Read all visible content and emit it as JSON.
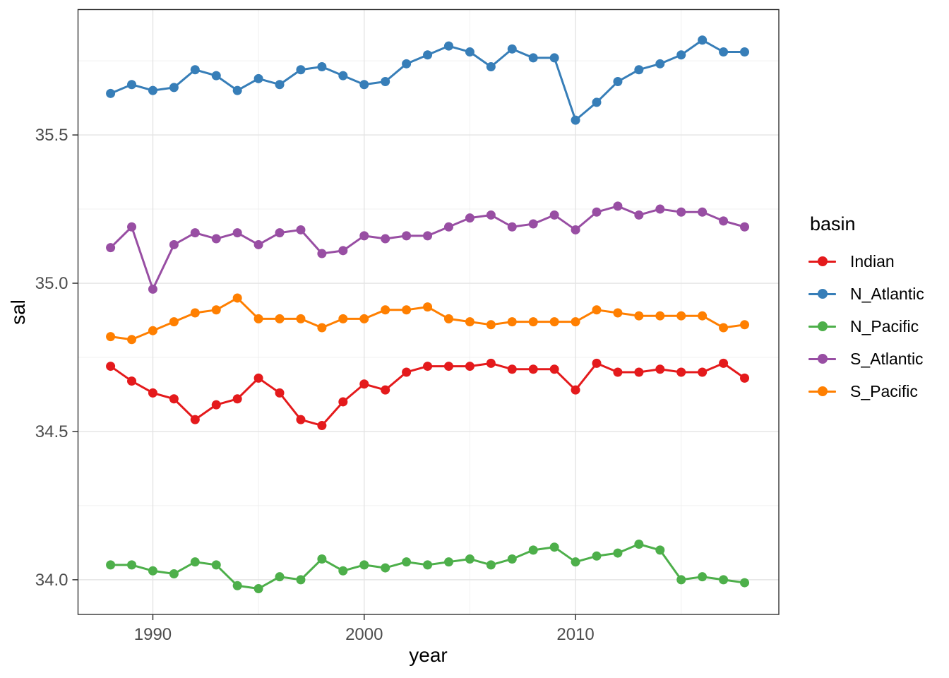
{
  "figure": {
    "x_axis_title": "year",
    "y_axis_title": "sal",
    "legend_title": "basin"
  },
  "style": {
    "background_color": "#FFFFFF",
    "panel_border_color": "#333333",
    "grid_major_color": "#E4E4E4",
    "grid_minor_color": "#F0F0F0",
    "tick_color": "#333333",
    "axis_text_color": "#4D4D4D",
    "axis_title_color": "#000000"
  },
  "chart_data": {
    "type": "line",
    "title": "",
    "xlabel": "year",
    "ylabel": "sal",
    "legend_title": "basin",
    "legend_position": "right",
    "grid": true,
    "marker": "point",
    "xlim": [
      1986.46,
      2019.62
    ],
    "ylim": [
      33.883,
      35.923
    ],
    "x_ticks": [
      {
        "value": 1990,
        "label": "1990"
      },
      {
        "value": 2000,
        "label": "2000"
      },
      {
        "value": 2010,
        "label": "2010"
      }
    ],
    "x_minor_ticks": [
      1995,
      2005,
      2015
    ],
    "y_ticks": [
      {
        "value": 34.0,
        "label": "34.0"
      },
      {
        "value": 34.5,
        "label": "34.5"
      },
      {
        "value": 35.0,
        "label": "35.0"
      },
      {
        "value": 35.5,
        "label": "35.5"
      }
    ],
    "y_minor_ticks": [
      34.25,
      34.75,
      35.25,
      35.75
    ],
    "x": [
      1988,
      1989,
      1990,
      1991,
      1992,
      1993,
      1994,
      1995,
      1996,
      1997,
      1998,
      1999,
      2000,
      2001,
      2002,
      2003,
      2004,
      2005,
      2006,
      2007,
      2008,
      2009,
      2010,
      2011,
      2012,
      2013,
      2014,
      2015,
      2016,
      2017,
      2018
    ],
    "series": [
      {
        "name": "Indian",
        "color": "#E41A1C",
        "values": [
          34.72,
          34.67,
          34.63,
          34.61,
          34.54,
          34.59,
          34.61,
          34.68,
          34.63,
          34.54,
          34.52,
          34.6,
          34.66,
          34.64,
          34.7,
          34.72,
          34.72,
          34.72,
          34.73,
          34.71,
          34.71,
          34.71,
          34.64,
          34.73,
          34.7,
          34.7,
          34.71,
          34.7,
          34.7,
          34.73,
          34.68
        ]
      },
      {
        "name": "N_Atlantic",
        "color": "#377EB8",
        "values": [
          35.64,
          35.67,
          35.65,
          35.66,
          35.72,
          35.7,
          35.65,
          35.69,
          35.67,
          35.72,
          35.73,
          35.7,
          35.67,
          35.68,
          35.74,
          35.77,
          35.8,
          35.78,
          35.73,
          35.79,
          35.76,
          35.76,
          35.55,
          35.61,
          35.68,
          35.72,
          35.74,
          35.77,
          35.82,
          35.78,
          35.78
        ]
      },
      {
        "name": "N_Pacific",
        "color": "#4DAF4A",
        "values": [
          34.05,
          34.05,
          34.03,
          34.02,
          34.06,
          34.05,
          33.98,
          33.97,
          34.01,
          34.0,
          34.07,
          34.03,
          34.05,
          34.04,
          34.06,
          34.05,
          34.06,
          34.07,
          34.05,
          34.07,
          34.1,
          34.11,
          34.06,
          34.08,
          34.09,
          34.12,
          34.1,
          34.0,
          34.01,
          34.0,
          33.99
        ]
      },
      {
        "name": "S_Atlantic",
        "color": "#984EA3",
        "values": [
          35.12,
          35.19,
          34.98,
          35.13,
          35.17,
          35.15,
          35.17,
          35.13,
          35.17,
          35.18,
          35.1,
          35.11,
          35.16,
          35.15,
          35.16,
          35.16,
          35.19,
          35.22,
          35.23,
          35.19,
          35.2,
          35.23,
          35.18,
          35.24,
          35.26,
          35.23,
          35.25,
          35.24,
          35.24,
          35.21,
          35.19
        ]
      },
      {
        "name": "S_Pacific",
        "color": "#FF7F00",
        "values": [
          34.82,
          34.81,
          34.84,
          34.87,
          34.9,
          34.91,
          34.95,
          34.88,
          34.88,
          34.88,
          34.85,
          34.88,
          34.88,
          34.91,
          34.91,
          34.92,
          34.88,
          34.87,
          34.86,
          34.87,
          34.87,
          34.87,
          34.87,
          34.91,
          34.9,
          34.89,
          34.89,
          34.89,
          34.89,
          34.85,
          34.86
        ]
      }
    ]
  }
}
